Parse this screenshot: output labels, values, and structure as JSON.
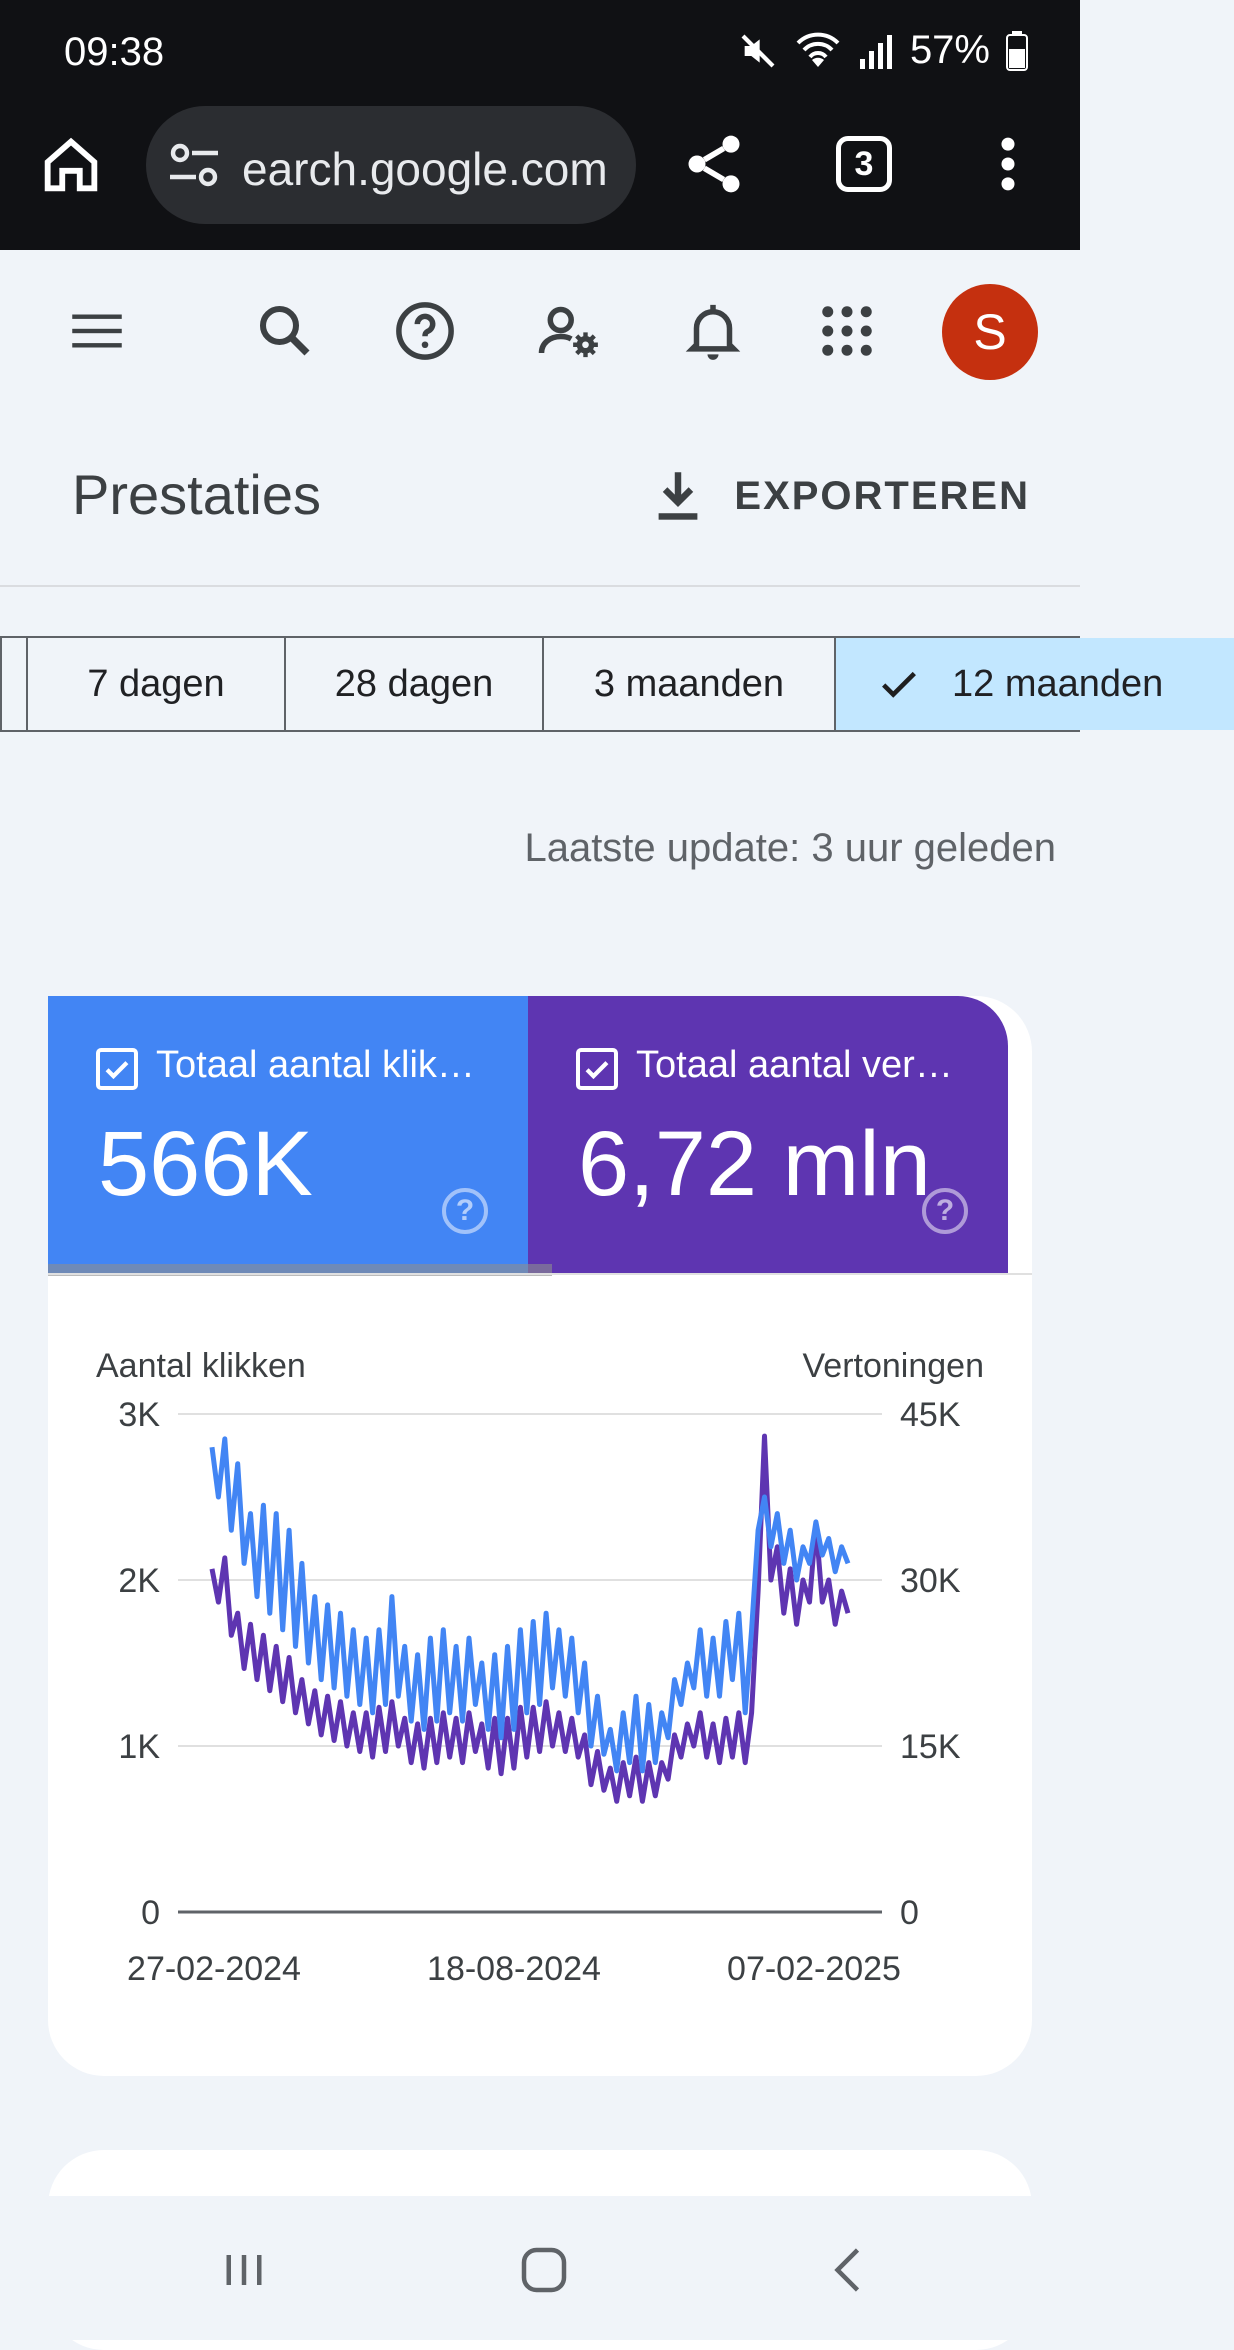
{
  "status_bar": {
    "time": "09:38",
    "battery": "57%"
  },
  "browser": {
    "url": "earch.google.com",
    "tab_count": "3"
  },
  "app_bar": {
    "avatar_letter": "S"
  },
  "page": {
    "title": "Prestaties",
    "export_label": "EXPORTEREN"
  },
  "ranges": [
    {
      "label": "7 dagen",
      "active": false
    },
    {
      "label": "28 dagen",
      "active": false
    },
    {
      "label": "3 maanden",
      "active": false
    },
    {
      "label": "12 maanden",
      "active": true
    }
  ],
  "last_update": "Laatste update: 3 uur geleden",
  "metrics": {
    "clicks": {
      "label": "Totaal aantal klik…",
      "value": "566K",
      "color": "#4285f4"
    },
    "impressions": {
      "label": "Totaal aantal ver…",
      "value": "6,72 mln",
      "color": "#5e35b1"
    }
  },
  "chart_data": {
    "type": "line",
    "ylabel_left": "Aantal klikken",
    "ylabel_right": "Vertoningen",
    "left_ticks": [
      "0",
      "1K",
      "2K",
      "3K"
    ],
    "right_ticks": [
      "0",
      "15K",
      "30K",
      "45K"
    ],
    "ylim_left": [
      0,
      3000
    ],
    "ylim_right": [
      0,
      45000
    ],
    "x_ticks": [
      "27-02-2024",
      "18-08-2024",
      "07-02-2025"
    ],
    "series": [
      {
        "name": "Totaal aantal klik…",
        "axis": "left",
        "color": "#4285f4",
        "values": [
          2800,
          2500,
          2850,
          2300,
          2700,
          2100,
          2400,
          1900,
          2450,
          1800,
          2400,
          1700,
          2300,
          1600,
          2100,
          1500,
          1900,
          1400,
          1850,
          1350,
          1800,
          1300,
          1700,
          1250,
          1650,
          1200,
          1700,
          1250,
          1900,
          1300,
          1600,
          1150,
          1550,
          1100,
          1650,
          1150,
          1700,
          1200,
          1600,
          1150,
          1650,
          1250,
          1500,
          1100,
          1550,
          1050,
          1600,
          1100,
          1700,
          1200,
          1750,
          1250,
          1800,
          1350,
          1700,
          1300,
          1650,
          1200,
          1500,
          1000,
          1300,
          950,
          1100,
          850,
          1200,
          900,
          1300,
          850,
          1250,
          900,
          1200,
          1050,
          1400,
          1250,
          1500,
          1350,
          1700,
          1300,
          1650,
          1300,
          1750,
          1400,
          1800,
          1200,
          1700,
          2300,
          2500,
          2200,
          2400,
          2100,
          2300,
          2000,
          2200,
          2100,
          2350,
          2150,
          2250,
          2050,
          2200,
          2100
        ]
      },
      {
        "name": "Totaal aantal ver…",
        "axis": "right",
        "color": "#5e35b1",
        "values": [
          31000,
          28000,
          32000,
          25000,
          27000,
          22000,
          26000,
          21000,
          25000,
          20000,
          24000,
          19000,
          23000,
          18000,
          21000,
          17000,
          20000,
          16000,
          19500,
          15500,
          19000,
          15000,
          18000,
          14500,
          18000,
          14000,
          18500,
          14500,
          19000,
          15000,
          17500,
          13500,
          17000,
          13000,
          17500,
          13500,
          18000,
          14000,
          17500,
          13500,
          18000,
          14500,
          17000,
          13000,
          17500,
          12500,
          17500,
          13000,
          18500,
          14000,
          18500,
          14500,
          19000,
          15000,
          18000,
          14500,
          17500,
          14000,
          16000,
          11500,
          14500,
          11000,
          13000,
          10000,
          13500,
          10500,
          14000,
          10000,
          13500,
          10500,
          13500,
          12000,
          16000,
          14000,
          17000,
          15000,
          18000,
          14000,
          17000,
          13500,
          17500,
          14000,
          18000,
          13500,
          18000,
          29000,
          43000,
          30000,
          33000,
          27000,
          31000,
          26000,
          30000,
          28000,
          35000,
          28000,
          30000,
          26000,
          29000,
          27000
        ]
      }
    ]
  }
}
